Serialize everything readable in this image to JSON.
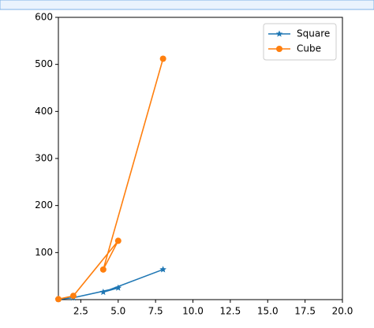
{
  "chart_data": {
    "type": "line",
    "x": [
      1,
      2,
      5,
      4,
      8
    ],
    "series": [
      {
        "name": "Square",
        "color": "#1f77b4",
        "marker": "star",
        "values": [
          1,
          4,
          25,
          16,
          64
        ]
      },
      {
        "name": "Cube",
        "color": "#ff7f0e",
        "marker": "circle",
        "values": [
          1,
          8,
          125,
          64,
          512
        ]
      }
    ],
    "xlim": [
      1,
      20
    ],
    "xticks": [
      2.5,
      {
        "value": 5,
        "label": "5.0"
      },
      7.5,
      {
        "value": 10,
        "label": "10.0"
      },
      12.5,
      {
        "value": 15,
        "label": "15.0"
      },
      17.5,
      {
        "value": 20,
        "label": "20.0"
      }
    ],
    "ylim": [
      0,
      600
    ],
    "yticks": [
      100,
      200,
      300,
      400,
      500,
      600
    ],
    "legend": "upper right"
  }
}
